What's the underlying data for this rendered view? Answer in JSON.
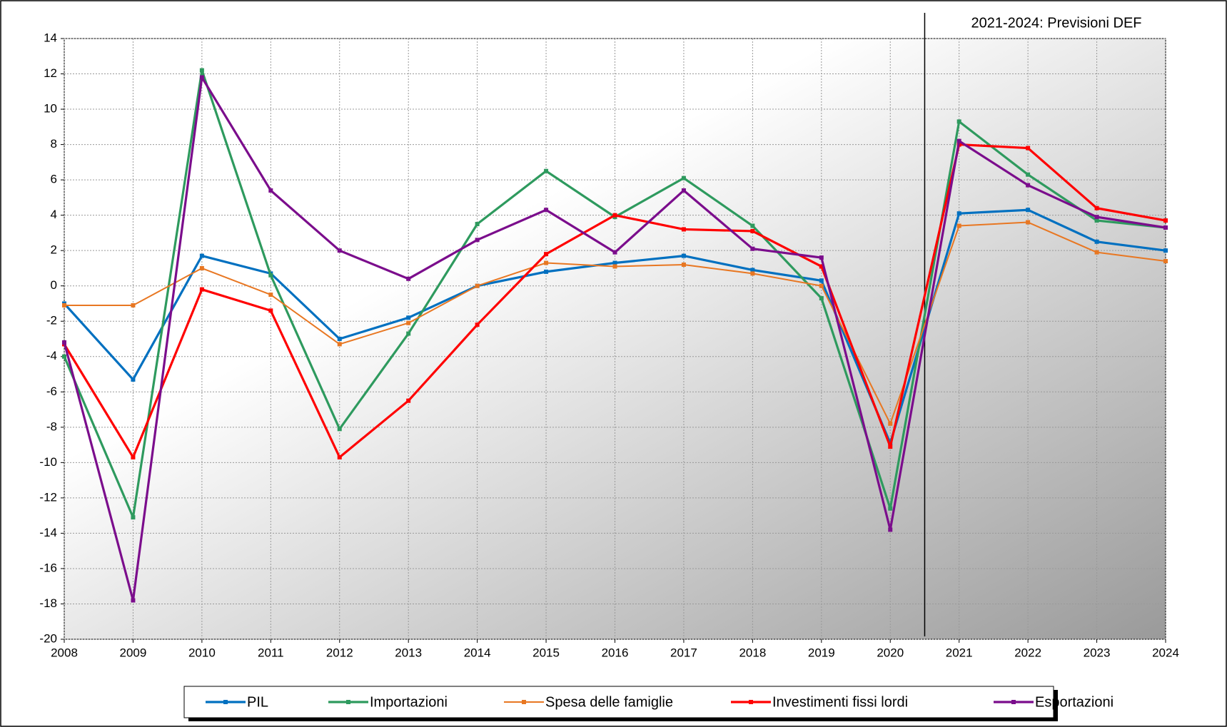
{
  "chart_data": {
    "type": "line",
    "annotation": "2021-2024: Previsioni DEF",
    "x": [
      2008,
      2009,
      2010,
      2011,
      2012,
      2013,
      2014,
      2015,
      2016,
      2017,
      2018,
      2019,
      2020,
      2021,
      2022,
      2023,
      2024
    ],
    "xlim": [
      2008,
      2024
    ],
    "xticks": [
      2008,
      2009,
      2010,
      2011,
      2012,
      2013,
      2014,
      2015,
      2016,
      2017,
      2018,
      2019,
      2020,
      2021,
      2022,
      2023,
      2024
    ],
    "ylim": [
      -20,
      14
    ],
    "yticks": [
      -20,
      -18,
      -16,
      -14,
      -12,
      -10,
      -8,
      -6,
      -4,
      -2,
      0,
      2,
      4,
      6,
      8,
      10,
      12,
      14
    ],
    "grid": true,
    "legend": "bottom",
    "series": [
      {
        "name": "PIL",
        "color": "#0070c0",
        "values": [
          -1.0,
          -5.3,
          1.7,
          0.7,
          -3.0,
          -1.8,
          0.0,
          0.8,
          1.3,
          1.7,
          0.9,
          0.3,
          -8.9,
          4.1,
          4.3,
          2.5,
          2.0
        ]
      },
      {
        "name": "Importazioni",
        "color": "#2e9a5e",
        "values": [
          -4.0,
          -13.1,
          12.2,
          0.6,
          -8.1,
          -2.7,
          3.5,
          6.5,
          3.9,
          6.1,
          3.4,
          -0.7,
          -12.6,
          9.3,
          6.3,
          3.7,
          3.3
        ]
      },
      {
        "name": "Spesa delle famiglie",
        "color": "#e87722",
        "values": [
          -1.1,
          -1.1,
          1.0,
          -0.5,
          -3.3,
          -2.1,
          0.0,
          1.3,
          1.1,
          1.2,
          0.7,
          0.0,
          -7.8,
          3.4,
          3.6,
          1.9,
          1.4
        ]
      },
      {
        "name": "Investimenti fissi lordi",
        "color": "#ff0000",
        "values": [
          -3.3,
          -9.7,
          -0.2,
          -1.4,
          -9.7,
          -6.5,
          -2.2,
          1.8,
          4.0,
          3.2,
          3.1,
          1.1,
          -9.1,
          8.0,
          7.8,
          4.4,
          3.7
        ]
      },
      {
        "name": "Esportazioni",
        "color": "#7b0d8c",
        "values": [
          -3.2,
          -17.8,
          11.8,
          5.4,
          2.0,
          0.4,
          2.6,
          4.3,
          1.9,
          5.4,
          2.1,
          1.6,
          -13.8,
          8.2,
          5.7,
          3.9,
          3.3
        ]
      }
    ]
  }
}
